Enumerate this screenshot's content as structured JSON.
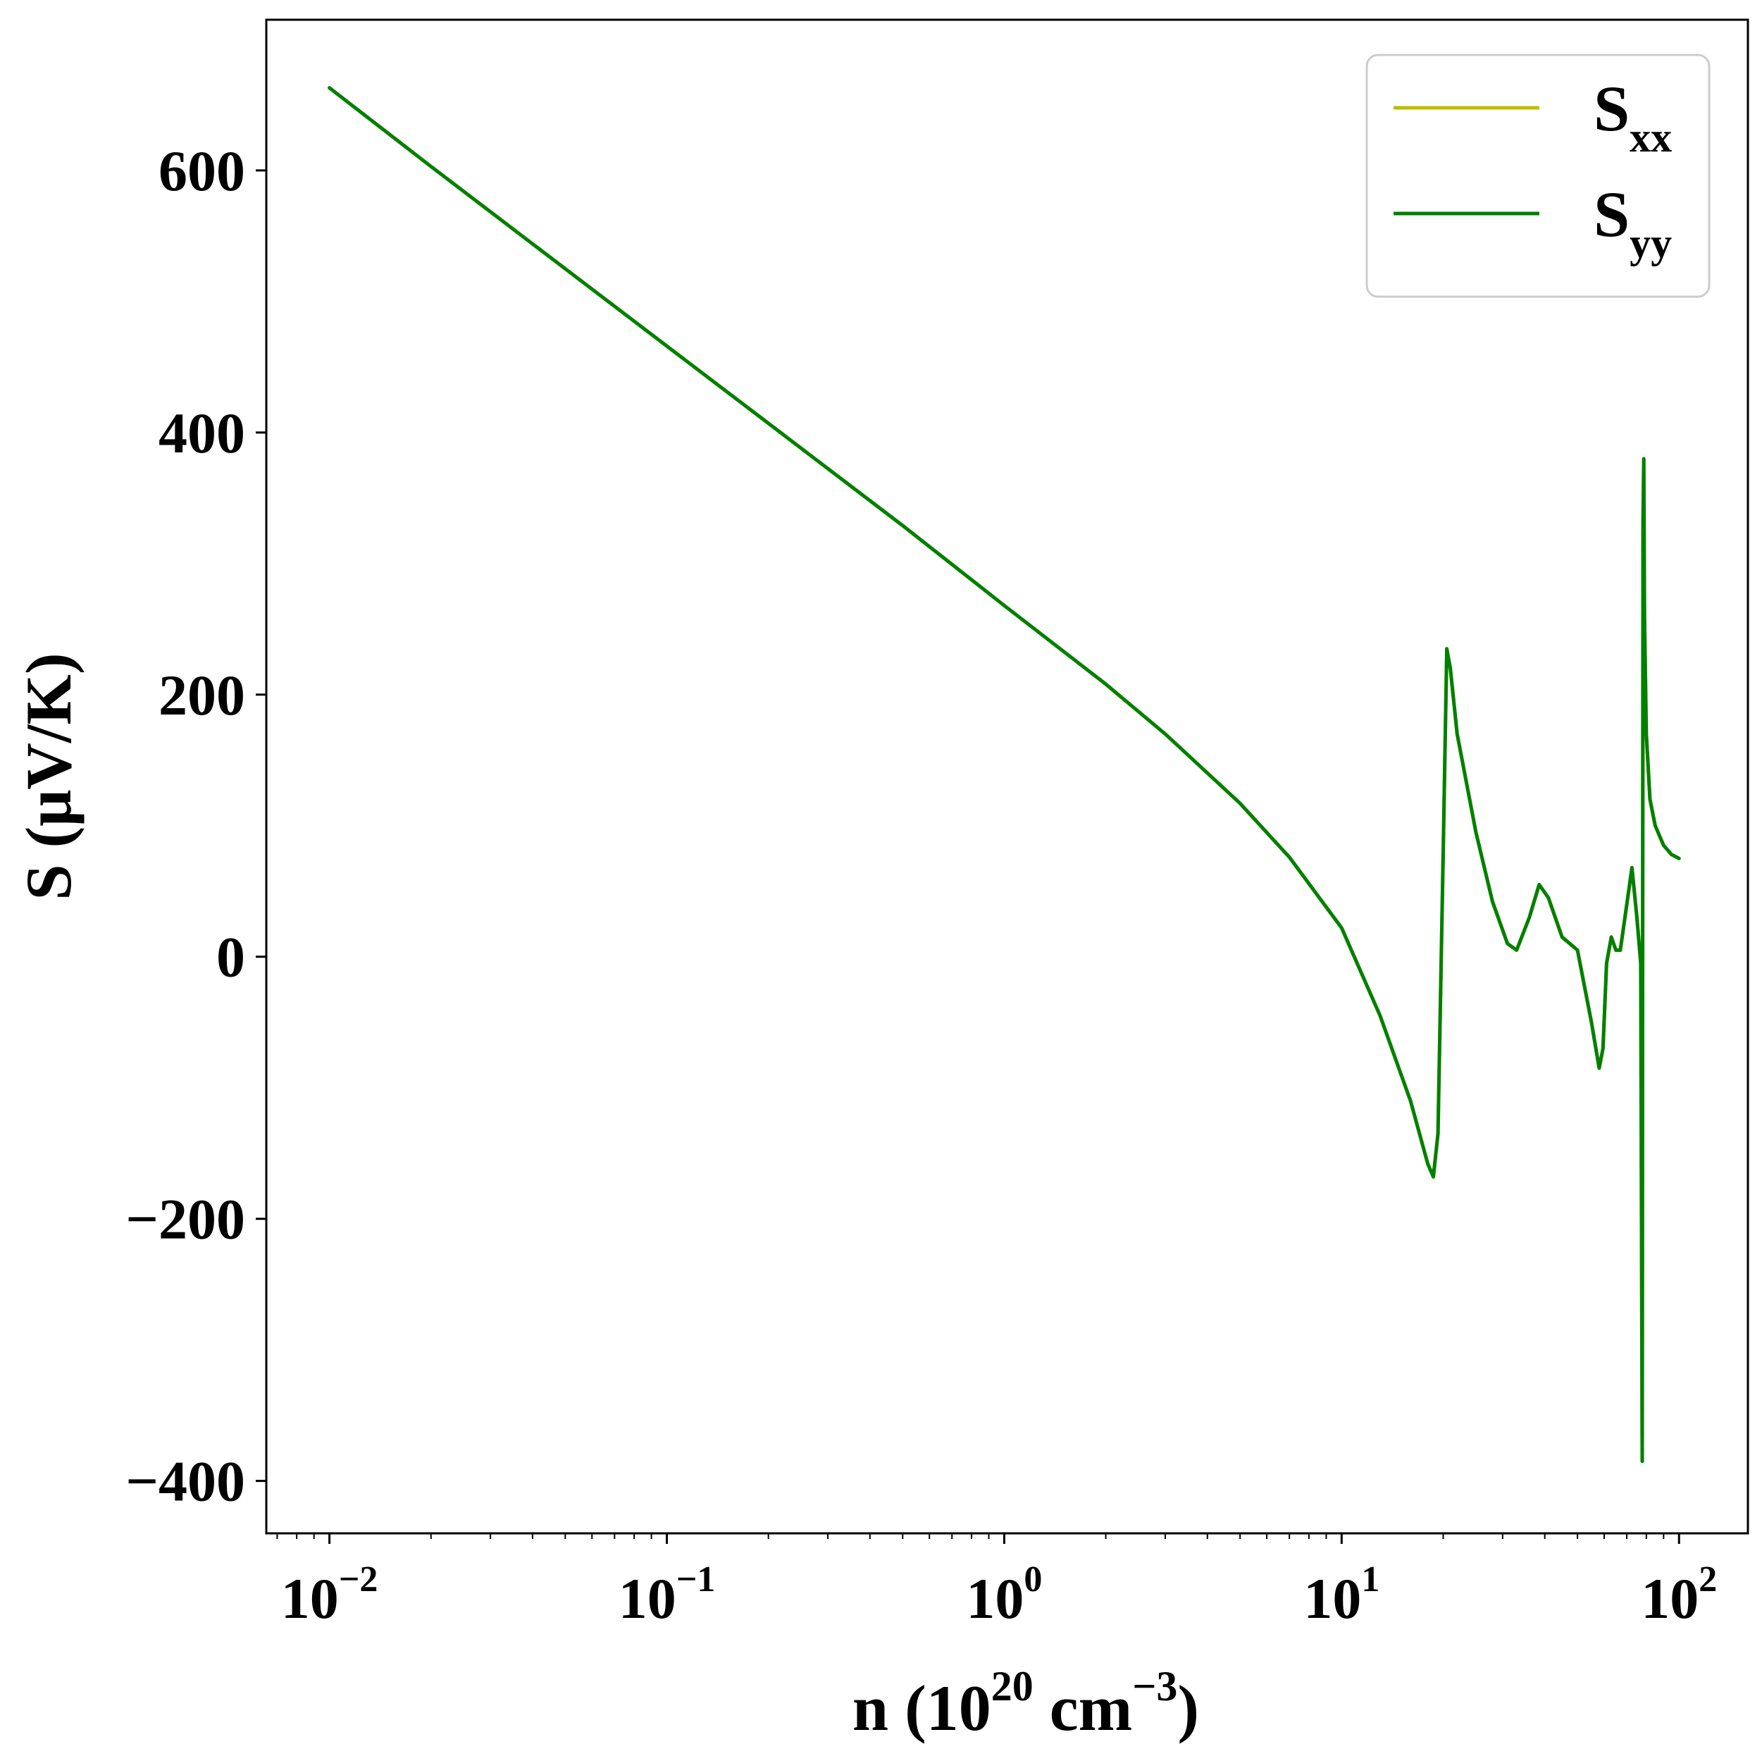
{
  "chart_data": {
    "type": "line",
    "xscale": "log",
    "xlim": [
      0.0065,
      160
    ],
    "ylim": [
      -440,
      715
    ],
    "x_ticks": [
      {
        "value": 0.01,
        "base": "10",
        "exp": "−2"
      },
      {
        "value": 0.1,
        "base": "10",
        "exp": "−1"
      },
      {
        "value": 1,
        "base": "10",
        "exp": "0"
      },
      {
        "value": 10,
        "base": "10",
        "exp": "1"
      },
      {
        "value": 100,
        "base": "10",
        "exp": "2"
      }
    ],
    "y_ticks": [
      {
        "value": 600,
        "label": "600"
      },
      {
        "value": 400,
        "label": "400"
      },
      {
        "value": 200,
        "label": "200"
      },
      {
        "value": 0,
        "label": "0"
      },
      {
        "value": -200,
        "label": "−200"
      },
      {
        "value": -400,
        "label": "−400"
      }
    ],
    "xlabel": {
      "pre": "n (10",
      "sup1": "20",
      "mid": " cm",
      "sup2": "−3",
      "post": ")"
    },
    "ylabel": "S (μV/K)",
    "legend_position": "top-right",
    "grid": false,
    "series": [
      {
        "name_main": "S",
        "name_sub": "xx",
        "color": "#bfbf00",
        "x": [
          0.01,
          0.02,
          0.05,
          0.1,
          0.2,
          0.5,
          1,
          2,
          3,
          5,
          7,
          10,
          13,
          16,
          18,
          18.7,
          19.3,
          20,
          20.5,
          21,
          22,
          25,
          28,
          31,
          33,
          36,
          38.5,
          41,
          45,
          50,
          55,
          58,
          59.5,
          61,
          63,
          65,
          67,
          70,
          72.5,
          75,
          77,
          77.8,
          78.2,
          78.6,
          79,
          80,
          82,
          85,
          90,
          95,
          100
        ],
        "y": [
          663,
          603,
          525,
          466,
          407,
          329,
          268,
          208,
          170,
          117,
          76,
          22,
          -45,
          -110,
          -158,
          -168,
          -135,
          80,
          235,
          220,
          170,
          95,
          42,
          10,
          5,
          30,
          55,
          45,
          15,
          5,
          -50,
          -85,
          -70,
          -5,
          15,
          5,
          5,
          40,
          68,
          30,
          -5,
          -385,
          330,
          380,
          260,
          170,
          120,
          100,
          85,
          78,
          75
        ]
      },
      {
        "name_main": "S",
        "name_sub": "yy",
        "color": "#008000",
        "x": [
          0.01,
          0.02,
          0.05,
          0.1,
          0.2,
          0.5,
          1,
          2,
          3,
          5,
          7,
          10,
          13,
          16,
          18,
          18.7,
          19.3,
          20,
          20.5,
          21,
          22,
          25,
          28,
          31,
          33,
          36,
          38.5,
          41,
          45,
          50,
          55,
          58,
          59.5,
          61,
          63,
          65,
          67,
          70,
          72.5,
          75,
          77,
          77.8,
          78.2,
          78.6,
          79,
          80,
          82,
          85,
          90,
          95,
          100
        ],
        "y": [
          663,
          603,
          525,
          466,
          407,
          329,
          268,
          208,
          170,
          117,
          76,
          22,
          -45,
          -110,
          -158,
          -168,
          -135,
          80,
          235,
          220,
          170,
          95,
          42,
          10,
          5,
          30,
          55,
          45,
          15,
          5,
          -50,
          -85,
          -70,
          -5,
          15,
          5,
          5,
          40,
          68,
          30,
          -5,
          -385,
          330,
          380,
          260,
          170,
          120,
          100,
          85,
          78,
          75
        ]
      }
    ]
  }
}
